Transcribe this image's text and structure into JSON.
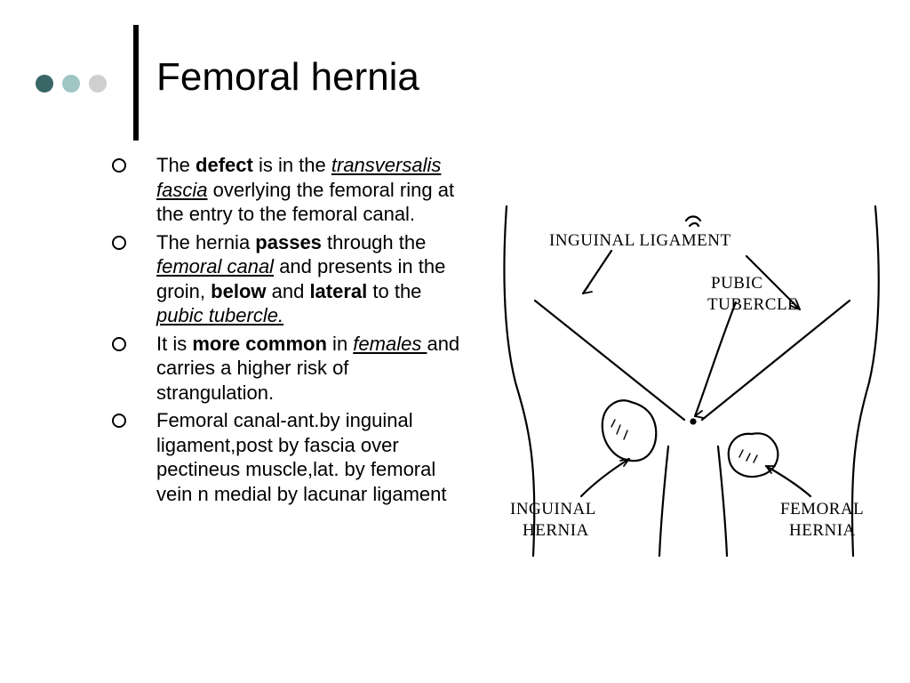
{
  "decor": {
    "dot_colors": [
      "#3b6666",
      "#9fc5c5",
      "#cfcfcf"
    ],
    "vline_color": "#000000"
  },
  "title": "Femoral hernia",
  "bullets": [
    {
      "segments": [
        {
          "t": "The "
        },
        {
          "t": "defect",
          "b": true
        },
        {
          "t": " is in the "
        },
        {
          "t": "transversalis fascia",
          "iu": true
        },
        {
          "t": " overlying the femoral ring at the entry to the femoral canal."
        }
      ]
    },
    {
      "segments": [
        {
          "t": "The hernia "
        },
        {
          "t": "passes",
          "b": true
        },
        {
          "t": " through the "
        },
        {
          "t": "femoral canal",
          "iu": true
        },
        {
          "t": " and presents in the groin, "
        },
        {
          "t": "below",
          "b": true
        },
        {
          "t": " and "
        },
        {
          "t": "lateral",
          "b": true
        },
        {
          "t": " to the "
        },
        {
          "t": "pubic tubercle.",
          "iu": true
        }
      ]
    },
    {
      "segments": [
        {
          "t": "It is "
        },
        {
          "t": "more common",
          "b": true
        },
        {
          "t": " in "
        },
        {
          "t": "females ",
          "iu": true
        },
        {
          "t": "and carries a higher risk of strangulation."
        }
      ]
    },
    {
      "segments": [
        {
          "t": "Femoral canal-ant.by inguinal ligament,post by fascia over pectineus muscle,lat. by femoral vein n medial by lacunar ligament"
        }
      ]
    }
  ],
  "diagram": {
    "labels": {
      "inguinal_ligament": "INGUINAL  LIGAMENT",
      "pubic_tubercle_1": "PUBIC",
      "pubic_tubercle_2": "TUBERCLE",
      "inguinal_hernia_1": "INGUINAL",
      "inguinal_hernia_2": "HERNIA",
      "femoral_hernia_1": "FEMORAL",
      "femoral_hernia_2": "HERNIA"
    },
    "stroke": "#000000",
    "stroke_width": 2.2
  }
}
